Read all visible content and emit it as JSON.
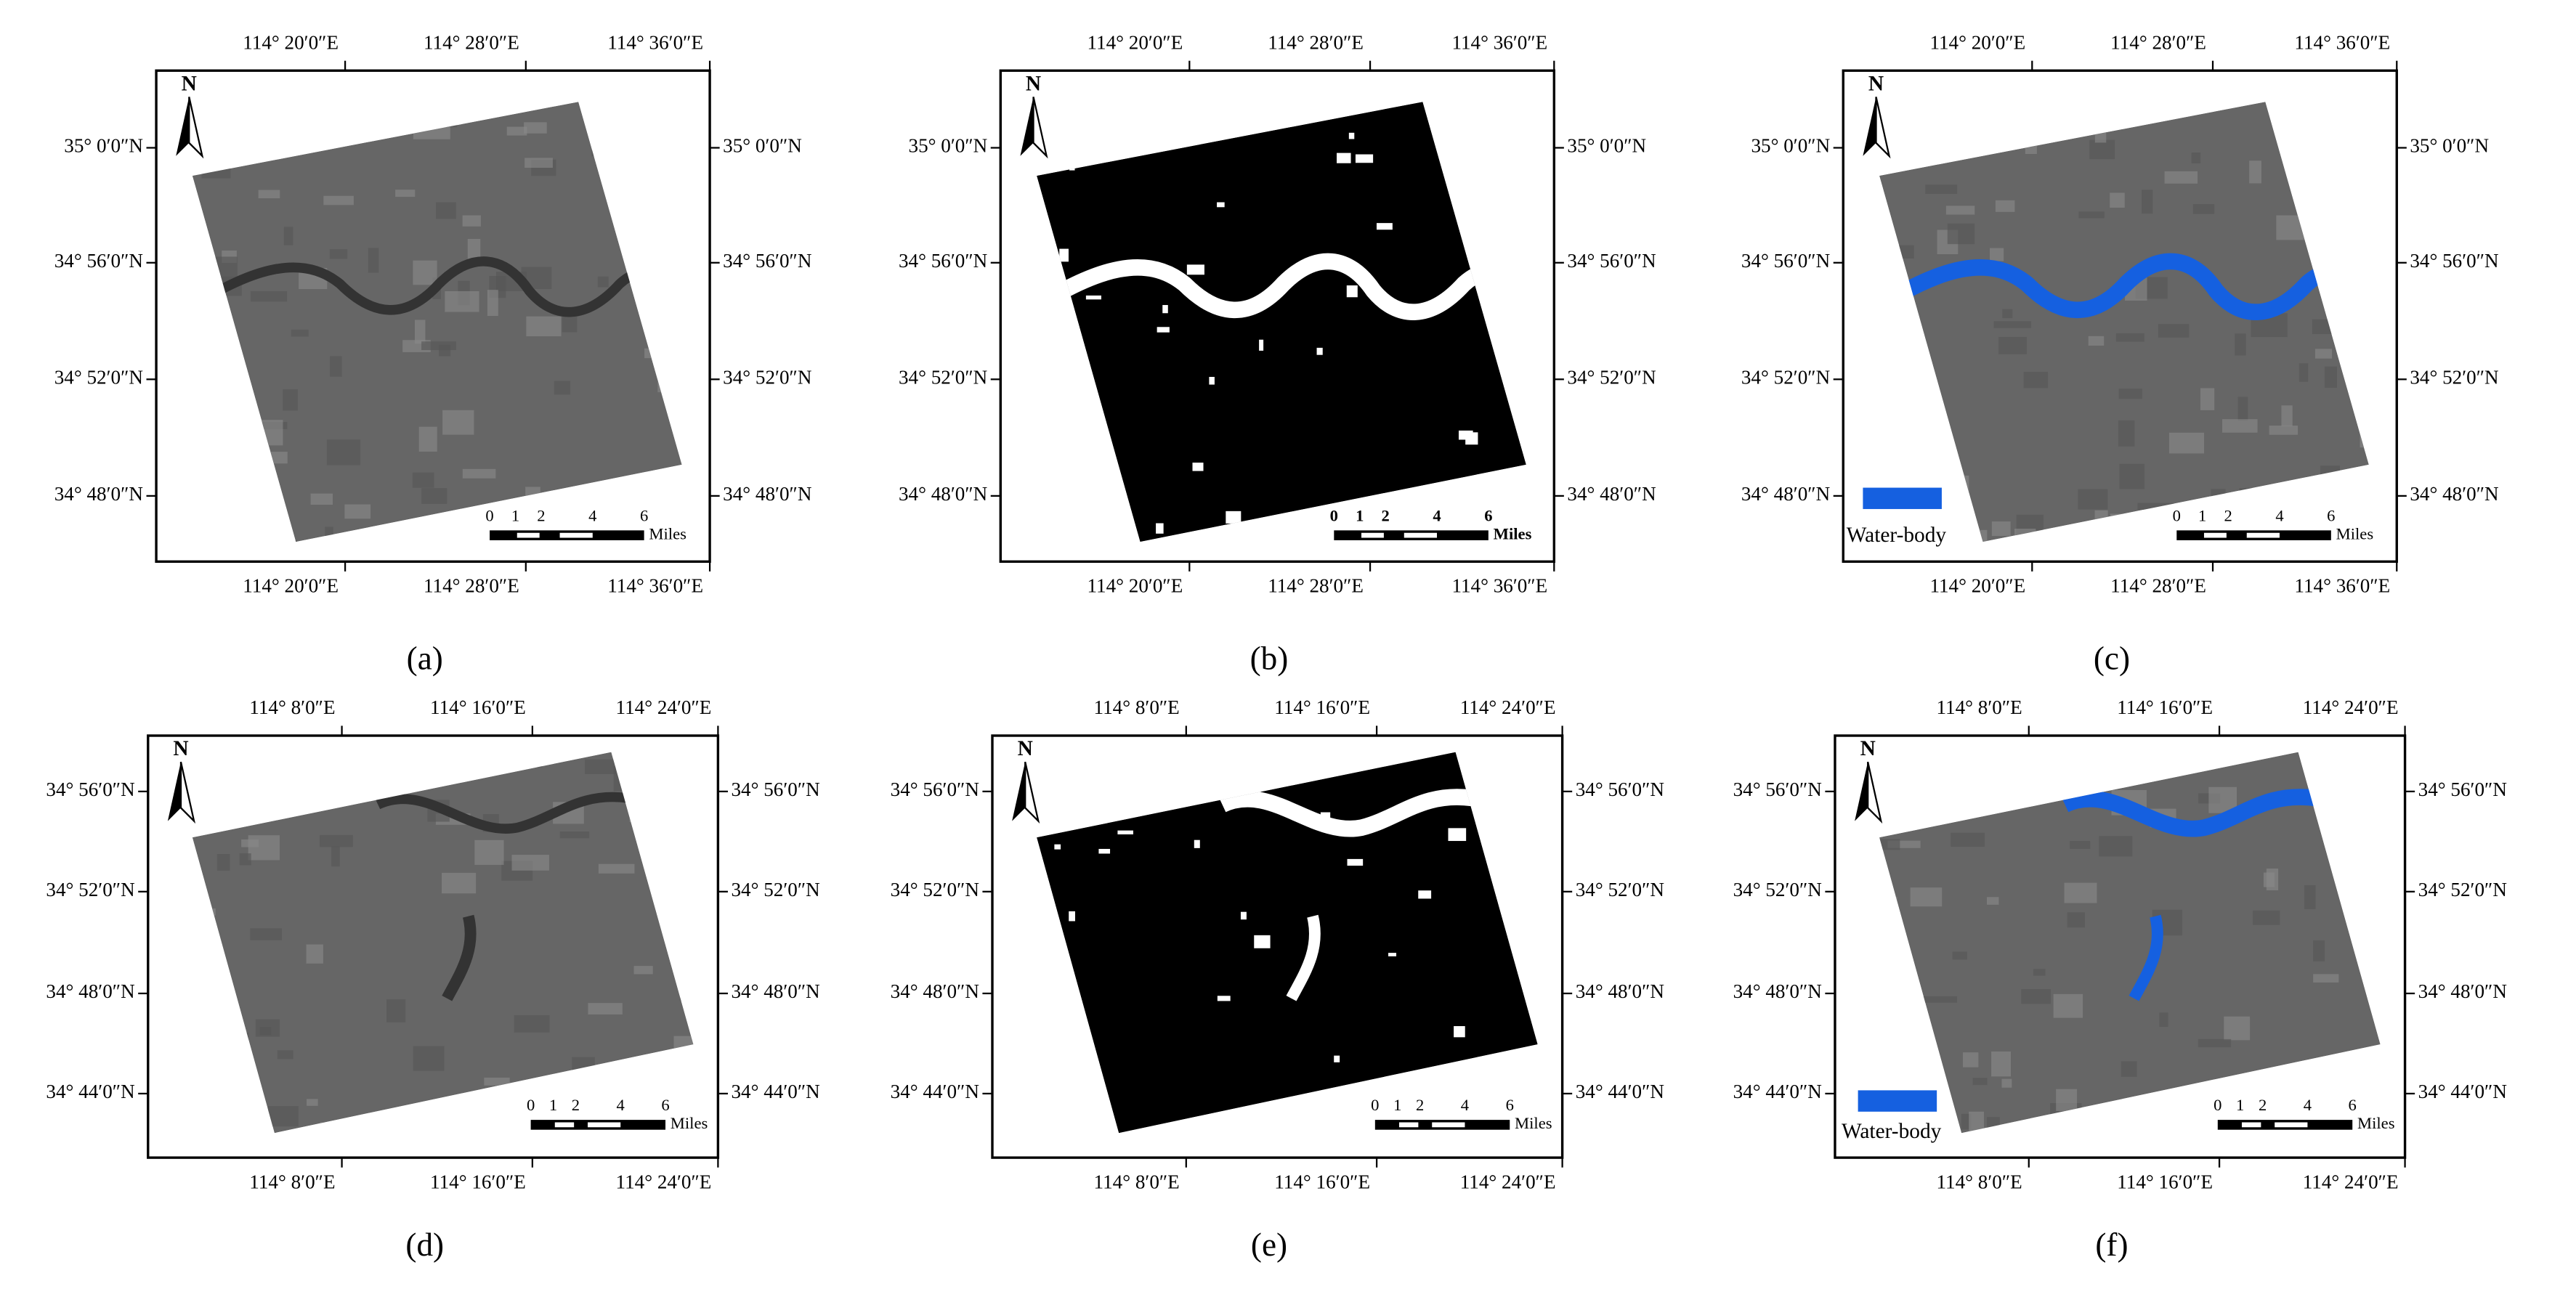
{
  "panels": [
    {
      "caption": "(a)",
      "longitudes": [
        "114° 20′0″E",
        "114° 28′0″E",
        "114° 36′0″E"
      ],
      "latitudes": [
        "35° 0′0″N",
        "34° 56′0″N",
        "34° 52′0″N",
        "34° 48′0″N"
      ],
      "north": "N",
      "scale": [
        0,
        1,
        2,
        4,
        6
      ],
      "scale_unit": "Miles"
    },
    {
      "caption": "(b)",
      "longitudes": [
        "114° 20′0″E",
        "114° 28′0″E",
        "114° 36′0″E"
      ],
      "latitudes": [
        "35° 0′0″N",
        "34° 56′0″N",
        "34° 52′0″N",
        "34° 48′0″N"
      ],
      "north": "N",
      "scale": [
        0,
        1,
        2,
        4,
        6
      ],
      "scale_unit": "Miles"
    },
    {
      "caption": "(c)",
      "longitudes": [
        "114° 20′0″E",
        "114° 28′0″E",
        "114° 36′0″E"
      ],
      "latitudes": [
        "35° 0′0″N",
        "34° 56′0″N",
        "34° 52′0″N",
        "34° 48′0″N"
      ],
      "north": "N",
      "scale": [
        0,
        1,
        2,
        4,
        6
      ],
      "scale_unit": "Miles",
      "legend": "Water-body"
    },
    {
      "caption": "(d)",
      "longitudes": [
        "114° 8′0″E",
        "114° 16′0″E",
        "114° 24′0″E"
      ],
      "latitudes": [
        "34° 56′0″N",
        "34° 52′0″N",
        "34° 48′0″N",
        "34° 44′0″N"
      ],
      "north": "N",
      "scale": [
        0,
        1,
        2,
        4,
        6
      ],
      "scale_unit": "Miles"
    },
    {
      "caption": "(e)",
      "longitudes": [
        "114° 8′0″E",
        "114° 16′0″E",
        "114° 24′0″E"
      ],
      "latitudes": [
        "34° 56′0″N",
        "34° 52′0″N",
        "34° 48′0″N",
        "34° 44′0″N"
      ],
      "north": "N",
      "scale": [
        0,
        1,
        2,
        4,
        6
      ],
      "scale_unit": "Miles"
    },
    {
      "caption": "(f)",
      "longitudes": [
        "114° 8′0″E",
        "114° 16′0″E",
        "114° 24′0″E"
      ],
      "latitudes": [
        "34° 56′0″N",
        "34° 52′0″N",
        "34° 48′0″N",
        "34° 44′0″N"
      ],
      "north": "N",
      "scale": [
        0,
        1,
        2,
        4,
        6
      ],
      "scale_unit": "Miles",
      "legend": "Water-body"
    }
  ]
}
